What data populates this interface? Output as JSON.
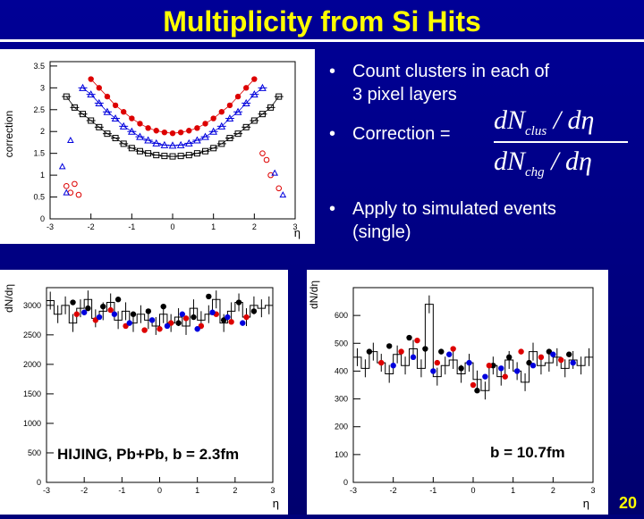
{
  "slide": {
    "title": "Multiplicity from Si Hits",
    "page_number": "20"
  },
  "bullets": [
    {
      "symbol": "•",
      "lines": [
        "Count clusters in each of",
        "3 pixel layers"
      ]
    },
    {
      "symbol": "•",
      "lines": [
        "Correction ="
      ]
    },
    {
      "symbol": "•",
      "lines": [
        "Apply to simulated events",
        "(single)"
      ]
    }
  ],
  "formula": {
    "num_d": "dN",
    "num_sub": "clus",
    "num_rest": "/ dη",
    "den_d": "dN",
    "den_sub": "chg",
    "den_rest": "/ dη"
  },
  "colors": {
    "red": "#dd0000",
    "blue": "#0000dd",
    "black": "#000000",
    "bg": "#00007a",
    "title": "#ffff00"
  },
  "chart_data": [
    {
      "type": "scatter",
      "id": "correction",
      "ylabel": "correction",
      "xlabel": "η",
      "xlim": [
        -3,
        3
      ],
      "ylim": [
        0,
        3.6
      ],
      "xticks": [
        "-3",
        "-2",
        "-1",
        "0",
        "1",
        "2",
        "3"
      ],
      "yticks": [
        "0",
        "0.5",
        "1",
        "1.5",
        "2",
        "2.5",
        "3",
        "3.5"
      ],
      "series": [
        {
          "color": "red",
          "marker": "circle",
          "x": [
            -2.0,
            -1.8,
            -1.6,
            -1.4,
            -1.2,
            -1.0,
            -0.8,
            -0.6,
            -0.4,
            -0.2,
            0.0,
            0.2,
            0.4,
            0.6,
            0.8,
            1.0,
            1.2,
            1.4,
            1.6,
            1.8,
            2.0
          ],
          "values": [
            3.2,
            3.0,
            2.8,
            2.6,
            2.45,
            2.3,
            2.18,
            2.08,
            2.02,
            1.98,
            1.96,
            1.98,
            2.02,
            2.08,
            2.18,
            2.3,
            2.45,
            2.6,
            2.8,
            3.0,
            3.2
          ]
        },
        {
          "color": "blue",
          "marker": "triangle",
          "x": [
            -2.2,
            -2.0,
            -1.8,
            -1.6,
            -1.4,
            -1.2,
            -1.0,
            -0.8,
            -0.6,
            -0.4,
            -0.2,
            0.0,
            0.2,
            0.4,
            0.6,
            0.8,
            1.0,
            1.2,
            1.4,
            1.6,
            1.8,
            2.0,
            2.2
          ],
          "values": [
            3.0,
            2.85,
            2.65,
            2.45,
            2.3,
            2.12,
            2.0,
            1.88,
            1.8,
            1.73,
            1.69,
            1.68,
            1.69,
            1.73,
            1.8,
            1.88,
            2.0,
            2.12,
            2.3,
            2.45,
            2.65,
            2.85,
            3.0
          ]
        },
        {
          "color": "black",
          "marker": "square",
          "x": [
            -2.6,
            -2.4,
            -2.2,
            -2.0,
            -1.8,
            -1.6,
            -1.4,
            -1.2,
            -1.0,
            -0.8,
            -0.6,
            -0.4,
            -0.2,
            0.0,
            0.2,
            0.4,
            0.6,
            0.8,
            1.0,
            1.2,
            1.4,
            1.6,
            1.8,
            2.0,
            2.2,
            2.4,
            2.6
          ],
          "values": [
            2.8,
            2.55,
            2.4,
            2.25,
            2.1,
            1.95,
            1.85,
            1.72,
            1.62,
            1.55,
            1.5,
            1.46,
            1.44,
            1.43,
            1.44,
            1.46,
            1.5,
            1.55,
            1.62,
            1.72,
            1.85,
            1.95,
            2.1,
            2.25,
            2.4,
            2.55,
            2.8
          ]
        },
        {
          "color": "red",
          "marker": "open-circle",
          "x": [
            -2.6,
            -2.5,
            -2.4,
            -2.3,
            2.2,
            2.3,
            2.4,
            2.6
          ],
          "values": [
            0.75,
            0.6,
            0.8,
            0.55,
            1.5,
            1.35,
            1.0,
            0.7
          ]
        },
        {
          "color": "blue",
          "marker": "open-triangle",
          "x": [
            -2.7,
            -2.6,
            -2.5,
            2.5,
            2.7
          ],
          "values": [
            1.2,
            0.6,
            1.8,
            1.05,
            0.55
          ]
        }
      ]
    },
    {
      "type": "scatter",
      "id": "central",
      "ylabel": "dN/dη",
      "xlabel": "η",
      "annotation": "HIJING, Pb+Pb, b = 2.3fm",
      "xlim": [
        -3,
        3
      ],
      "ylim": [
        0,
        3300
      ],
      "xticks": [
        "-3",
        "-2",
        "-1",
        "0",
        "1",
        "2",
        "3"
      ],
      "yticks": [
        "0",
        "500",
        "1000",
        "1500",
        "2000",
        "2500",
        "3000"
      ],
      "histogram": {
        "edges": [
          -3.0,
          -2.8,
          -2.6,
          -2.4,
          -2.2,
          -2.0,
          -1.8,
          -1.6,
          -1.4,
          -1.2,
          -1.0,
          -0.8,
          -0.6,
          -0.4,
          -0.2,
          0.0,
          0.2,
          0.4,
          0.6,
          0.8,
          1.0,
          1.2,
          1.4,
          1.6,
          1.8,
          2.0,
          2.2,
          2.4,
          2.6,
          2.8,
          3.0
        ],
        "values": [
          3080,
          2850,
          3000,
          2700,
          2950,
          3100,
          2780,
          2900,
          3050,
          2750,
          2900,
          2700,
          2850,
          2750,
          2650,
          2850,
          2700,
          2800,
          2650,
          2950,
          2750,
          2850,
          3100,
          2700,
          2900,
          3050,
          2800,
          3000,
          2950,
          3000
        ]
      },
      "series": [
        {
          "color": "black",
          "marker": "circle",
          "x": [
            -2.3,
            -1.9,
            -1.5,
            -1.1,
            -0.7,
            -0.3,
            0.1,
            0.5,
            0.9,
            1.3,
            1.7,
            2.1,
            2.5
          ],
          "values": [
            3050,
            2950,
            2980,
            3100,
            2850,
            2900,
            2980,
            2700,
            2800,
            3150,
            2750,
            3050,
            2900
          ]
        },
        {
          "color": "red",
          "marker": "circle",
          "x": [
            -2.2,
            -1.7,
            -1.3,
            -0.9,
            -0.4,
            0.0,
            0.3,
            0.7,
            1.1,
            1.5,
            1.9,
            2.3
          ],
          "values": [
            2850,
            2750,
            2920,
            2650,
            2580,
            2600,
            2700,
            2780,
            2650,
            2850,
            2720,
            2800
          ]
        },
        {
          "color": "blue",
          "marker": "circle",
          "x": [
            -2.0,
            -1.6,
            -1.2,
            -0.8,
            -0.2,
            0.2,
            0.6,
            1.0,
            1.4,
            1.8,
            2.2
          ],
          "values": [
            2880,
            2800,
            2850,
            2700,
            2750,
            2650,
            2850,
            2600,
            2880,
            2800,
            2700
          ]
        }
      ]
    },
    {
      "type": "scatter",
      "id": "peripheral",
      "ylabel": "dN/dη",
      "xlabel": "η",
      "annotation": "b = 10.7fm",
      "xlim": [
        -3,
        3
      ],
      "ylim": [
        0,
        700
      ],
      "xticks": [
        "-3",
        "-2",
        "-1",
        "0",
        "1",
        "2",
        "3"
      ],
      "yticks": [
        "0",
        "100",
        "200",
        "300",
        "400",
        "500",
        "600"
      ],
      "histogram": {
        "edges": [
          -3.0,
          -2.8,
          -2.6,
          -2.4,
          -2.2,
          -2.0,
          -1.8,
          -1.6,
          -1.4,
          -1.2,
          -1.0,
          -0.8,
          -0.6,
          -0.4,
          -0.2,
          0.0,
          0.2,
          0.4,
          0.6,
          0.8,
          1.0,
          1.2,
          1.4,
          1.6,
          1.8,
          2.0,
          2.2,
          2.4,
          2.6,
          2.8,
          3.0
        ],
        "values": [
          450,
          410,
          470,
          430,
          390,
          460,
          420,
          480,
          410,
          640,
          380,
          420,
          440,
          390,
          430,
          370,
          330,
          420,
          380,
          440,
          400,
          360,
          470,
          420,
          430,
          450,
          410,
          440,
          420,
          450
        ]
      },
      "series": [
        {
          "color": "black",
          "marker": "circle",
          "x": [
            -2.6,
            -2.1,
            -1.6,
            -1.2,
            -0.8,
            -0.3,
            0.1,
            0.5,
            0.9,
            1.4,
            1.9,
            2.4
          ],
          "values": [
            470,
            490,
            520,
            480,
            470,
            410,
            330,
            420,
            450,
            430,
            470,
            460
          ]
        },
        {
          "color": "red",
          "marker": "circle",
          "x": [
            -2.3,
            -1.8,
            -1.4,
            -0.9,
            -0.5,
            0.0,
            0.4,
            0.8,
            1.2,
            1.7,
            2.2
          ],
          "values": [
            430,
            470,
            510,
            430,
            480,
            350,
            420,
            380,
            470,
            450,
            440
          ]
        },
        {
          "color": "blue",
          "marker": "circle",
          "x": [
            -2.0,
            -1.5,
            -1.0,
            -0.6,
            -0.1,
            0.3,
            0.7,
            1.1,
            1.5,
            2.0,
            2.5
          ],
          "values": [
            420,
            450,
            400,
            460,
            430,
            380,
            410,
            400,
            420,
            460,
            430
          ]
        }
      ]
    }
  ]
}
